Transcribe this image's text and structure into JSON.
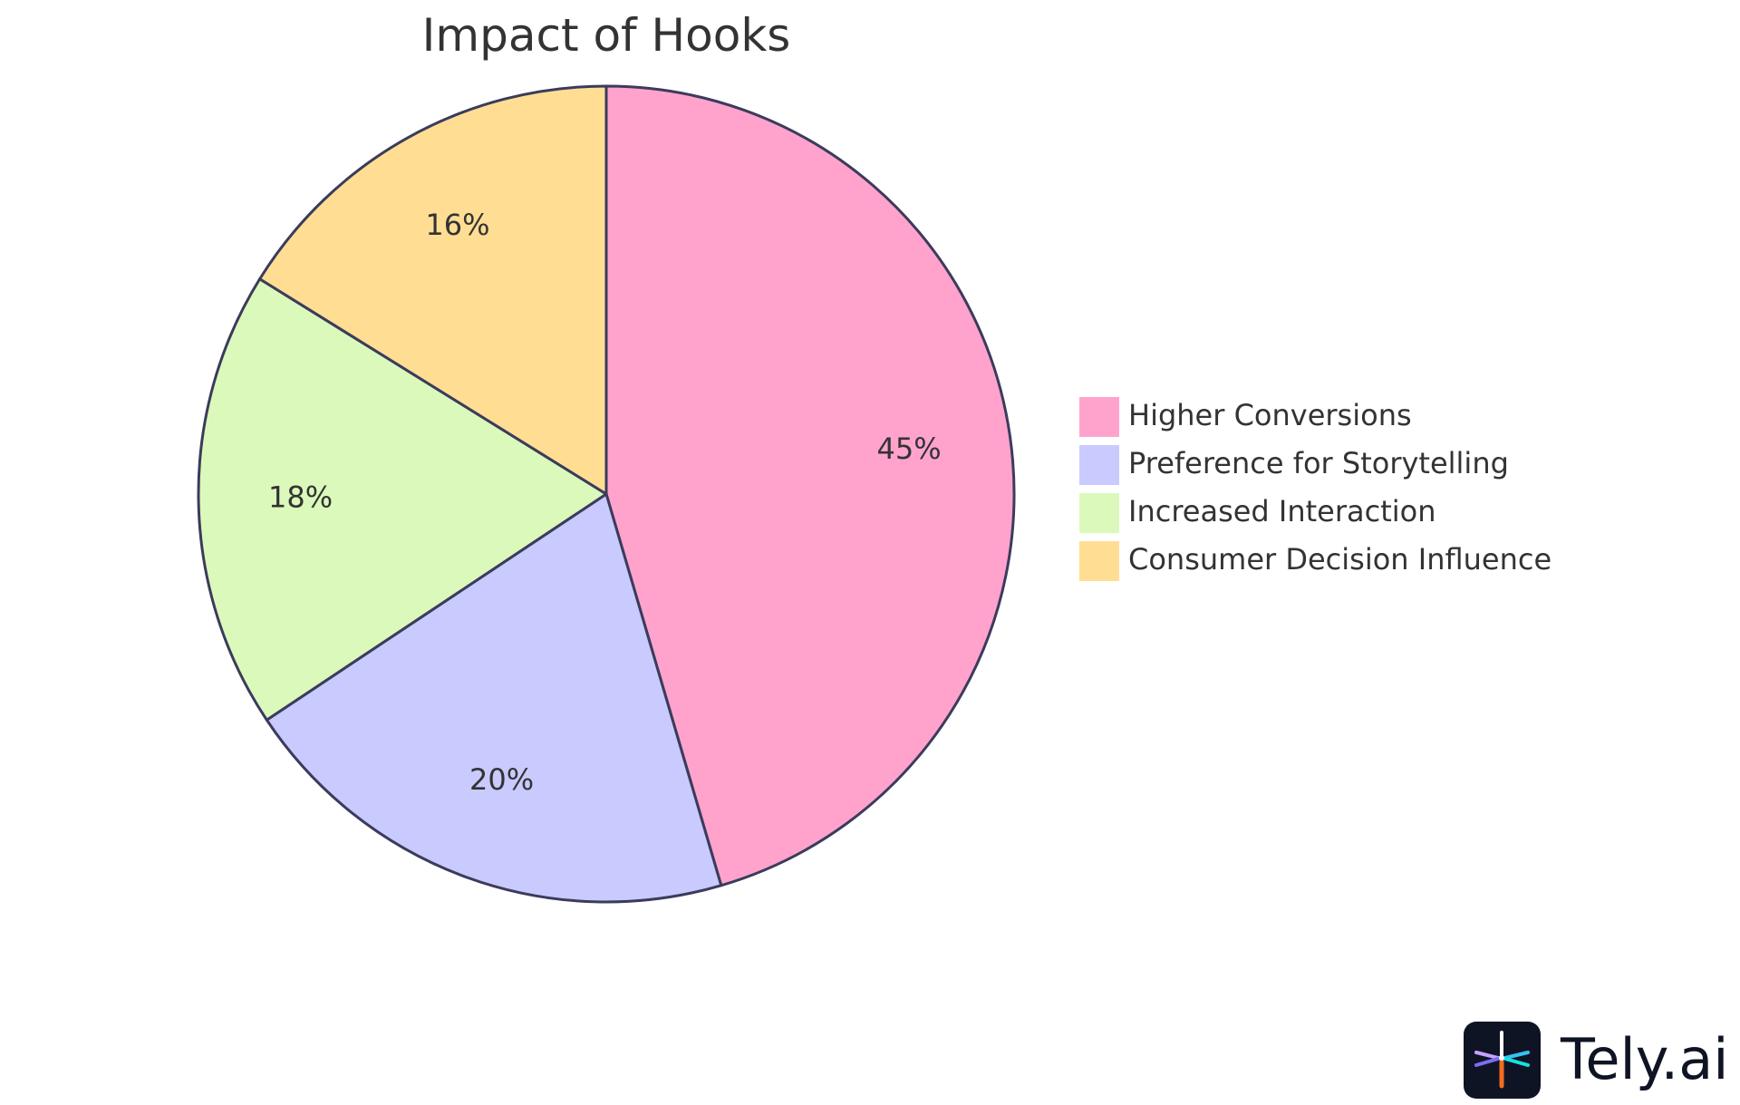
{
  "chart_data": {
    "type": "pie",
    "title": "Impact of Hooks",
    "categories": [
      "Higher Conversions",
      "Preference for Storytelling",
      "Increased Interaction",
      "Consumer Decision Influence"
    ],
    "values": [
      45,
      20,
      18,
      16
    ],
    "value_labels": [
      "45%",
      "20%",
      "18%",
      "16%"
    ],
    "colors": [
      "#FFA3CD",
      "#C9CAFD",
      "#DBF9BA",
      "#FFDE94"
    ],
    "start_angle": "top",
    "direction": "clockwise",
    "legend_position": "right"
  },
  "branding": {
    "name": "Tely.ai",
    "icon": "tely-logo-icon"
  }
}
